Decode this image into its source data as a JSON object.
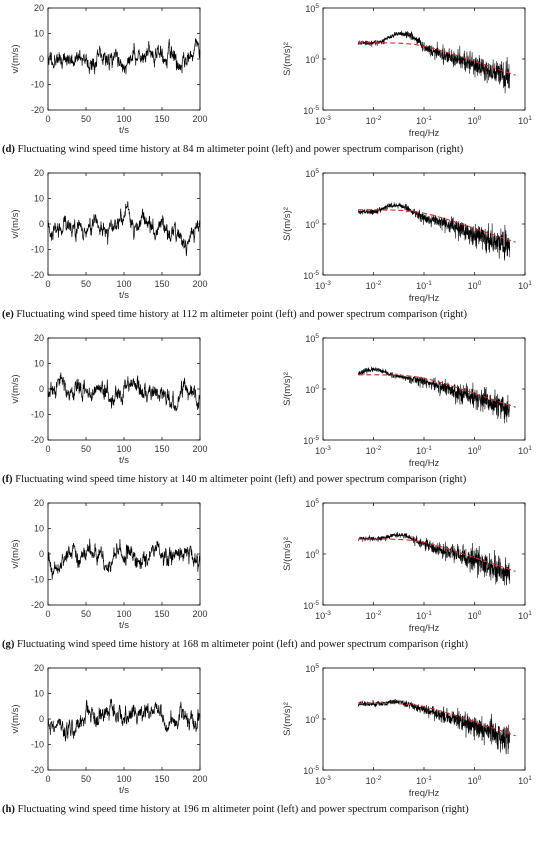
{
  "panels": [
    {
      "letter": "(d)",
      "caption": " Fluctuating wind speed time history at 84 m altimeter point (left) and power spectrum comparison (right)"
    },
    {
      "letter": "(e)",
      "caption": " Fluctuating wind speed time history at 112 m altimeter point (left) and power spectrum comparison (right)"
    },
    {
      "letter": "(f)",
      "caption": " Fluctuating wind speed time history at 140 m altimeter point (left) and power spectrum comparison (right)"
    },
    {
      "letter": "(g)",
      "caption": " Fluctuating wind speed time history at 168 m altimeter point (left) and power spectrum comparison (right)"
    },
    {
      "letter": "(h)",
      "caption": " Fluctuating wind speed time history at 196 m altimeter point (left) and power spectrum comparison (right)"
    }
  ],
  "colors": {
    "signal": "#000000",
    "target_spectrum": "#d62728",
    "axis": "#000000",
    "text": "#333333"
  },
  "chart_data": [
    {
      "type": "line",
      "panel": "(d)",
      "side": "left",
      "xlabel": "t/s",
      "ylabel": "v/(m/s)",
      "xlim": [
        0,
        200
      ],
      "ylim": [
        -20,
        20
      ],
      "xticks": [
        0,
        50,
        100,
        150,
        200
      ],
      "yticks": [
        -20,
        -10,
        0,
        10,
        20
      ],
      "series": [
        {
          "x_range": [
            0,
            200
          ],
          "std": 4.2,
          "seed": 11
        }
      ]
    },
    {
      "type": "line",
      "panel": "(d)",
      "side": "right",
      "xlabel": "freq/Hz",
      "ylabel": "S/(m/s)²",
      "xscale": "log",
      "yscale": "log",
      "xlim": [
        0.001,
        10
      ],
      "ylim": [
        1e-05,
        100000
      ],
      "xticks": [
        "10^-3",
        "10^-2",
        "10^-1",
        "10^0",
        "10^1"
      ],
      "yticks": [
        "10^-5",
        "10^0",
        "10^5"
      ],
      "series": [
        {
          "x_range": [
            0.005,
            5
          ],
          "start": 38,
          "peak": 450,
          "peak_freq": 0.04,
          "seed": 21
        },
        {
          "x_range": [
            0.005,
            6.5
          ],
          "plateau": 40,
          "f0": 0.02,
          "end": 0.01,
          "dashed": true
        }
      ]
    },
    {
      "type": "line",
      "panel": "(e)",
      "side": "left",
      "xlabel": "t/s",
      "ylabel": "v/(m/s)",
      "xlim": [
        0,
        200
      ],
      "ylim": [
        -20,
        20
      ],
      "xticks": [
        0,
        50,
        100,
        150,
        200
      ],
      "yticks": [
        -20,
        -10,
        0,
        10,
        20
      ],
      "series": [
        {
          "x_range": [
            0,
            200
          ],
          "std": 4.0,
          "seed": 12
        }
      ]
    },
    {
      "type": "line",
      "panel": "(e)",
      "side": "right",
      "xlabel": "freq/Hz",
      "ylabel": "S/(m/s)²",
      "xscale": "log",
      "yscale": "log",
      "xlim": [
        0.001,
        10
      ],
      "ylim": [
        1e-05,
        100000
      ],
      "xticks": [
        "10^-3",
        "10^-2",
        "10^-1",
        "10^0",
        "10^1"
      ],
      "yticks": [
        "10^-5",
        "10^0",
        "10^5"
      ],
      "series": [
        {
          "x_range": [
            0.005,
            5
          ],
          "start": 15,
          "peak": 90,
          "peak_freq": 0.03,
          "seed": 22
        },
        {
          "x_range": [
            0.005,
            6.5
          ],
          "plateau": 25,
          "f0": 0.02,
          "end": 0.01,
          "dashed": true
        }
      ]
    },
    {
      "type": "line",
      "panel": "(f)",
      "side": "left",
      "xlabel": "t/s",
      "ylabel": "v/(m/s)",
      "xlim": [
        0,
        200
      ],
      "ylim": [
        -20,
        20
      ],
      "xticks": [
        0,
        50,
        100,
        150,
        200
      ],
      "yticks": [
        -20,
        -10,
        0,
        10,
        20
      ],
      "series": [
        {
          "x_range": [
            0,
            200
          ],
          "std": 3.8,
          "seed": 13
        }
      ]
    },
    {
      "type": "line",
      "panel": "(f)",
      "side": "right",
      "xlabel": "freq/Hz",
      "ylabel": "S/(m/s)²",
      "xscale": "log",
      "yscale": "log",
      "xlim": [
        0.001,
        10
      ],
      "ylim": [
        1e-05,
        100000
      ],
      "xticks": [
        "10^-3",
        "10^-2",
        "10^-1",
        "10^0",
        "10^1"
      ],
      "yticks": [
        "10^-5",
        "10^0",
        "10^5"
      ],
      "series": [
        {
          "x_range": [
            0.005,
            5
          ],
          "start": 20,
          "peak": 80,
          "peak_freq": 0.01,
          "seed": 23
        },
        {
          "x_range": [
            0.005,
            6.5
          ],
          "plateau": 25,
          "f0": 0.02,
          "end": 0.01,
          "dashed": true
        }
      ]
    },
    {
      "type": "line",
      "panel": "(g)",
      "side": "left",
      "xlabel": "t/s",
      "ylabel": "v/(m/s)",
      "xlim": [
        0,
        200
      ],
      "ylim": [
        -20,
        20
      ],
      "xticks": [
        0,
        50,
        100,
        150,
        200
      ],
      "yticks": [
        -20,
        -10,
        0,
        10,
        20
      ],
      "series": [
        {
          "x_range": [
            0,
            200
          ],
          "std": 3.6,
          "seed": 14
        }
      ]
    },
    {
      "type": "line",
      "panel": "(g)",
      "side": "right",
      "xlabel": "freq/Hz",
      "ylabel": "S/(m/s)²",
      "xscale": "log",
      "yscale": "log",
      "xlim": [
        0.001,
        10
      ],
      "ylim": [
        1e-05,
        100000
      ],
      "xticks": [
        "10^-3",
        "10^-2",
        "10^-1",
        "10^0",
        "10^1"
      ],
      "yticks": [
        "10^-5",
        "10^0",
        "10^5"
      ],
      "series": [
        {
          "x_range": [
            0.005,
            5
          ],
          "start": 30,
          "peak": 100,
          "peak_freq": 0.035,
          "seed": 24
        },
        {
          "x_range": [
            0.005,
            6.5
          ],
          "plateau": 30,
          "f0": 0.02,
          "end": 0.01,
          "dashed": true
        }
      ]
    },
    {
      "type": "line",
      "panel": "(h)",
      "side": "left",
      "xlabel": "t/s",
      "ylabel": "v/(m/s)",
      "xlim": [
        0,
        200
      ],
      "ylim": [
        -20,
        20
      ],
      "xticks": [
        0,
        50,
        100,
        150,
        200
      ],
      "yticks": [
        -20,
        -10,
        0,
        10,
        20
      ],
      "series": [
        {
          "x_range": [
            0,
            200
          ],
          "std": 3.8,
          "seed": 15
        }
      ]
    },
    {
      "type": "line",
      "panel": "(h)",
      "side": "right",
      "xlabel": "freq/Hz",
      "ylabel": "S/(m/s)²",
      "xscale": "log",
      "yscale": "log",
      "xlim": [
        0.001,
        10
      ],
      "ylim": [
        1e-05,
        100000
      ],
      "xticks": [
        "10^-3",
        "10^-2",
        "10^-1",
        "10^0",
        "10^1"
      ],
      "yticks": [
        "10^-5",
        "10^0",
        "10^5"
      ],
      "series": [
        {
          "x_range": [
            0.005,
            5
          ],
          "start": 30,
          "peak": 60,
          "peak_freq": 0.03,
          "seed": 25
        },
        {
          "x_range": [
            0.005,
            6.5
          ],
          "plateau": 35,
          "f0": 0.02,
          "end": 0.01,
          "dashed": true
        }
      ]
    }
  ]
}
